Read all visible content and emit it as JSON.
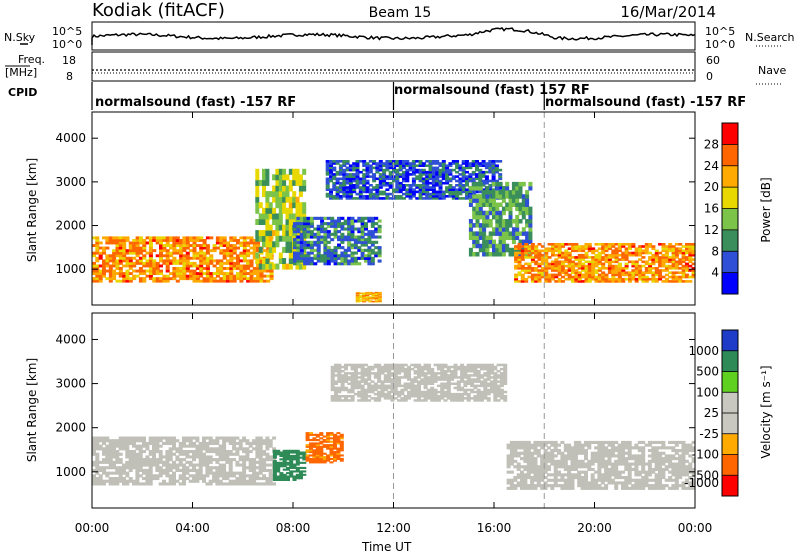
{
  "header": {
    "station": "Kodiak (fitACF)",
    "beam": "Beam 15",
    "date": "16/Mar/2014"
  },
  "panels": {
    "noise": {
      "left_label": "N.Sky",
      "right_label": "N.Search",
      "left_ticks": [
        "10^5",
        "10^0"
      ],
      "right_ticks": [
        "10^5",
        "10^0"
      ]
    },
    "freq": {
      "left_label_1": "Freq.",
      "left_label_2": "[MHz]",
      "right_label": "Nave",
      "left_ticks": [
        "18",
        "8"
      ],
      "right_ticks": [
        "60",
        "0"
      ]
    },
    "cpid": {
      "label": "CPID",
      "segments": [
        {
          "text": "normalsound (fast) -157 RF",
          "start_hour": 0
        },
        {
          "text": "normalsound (fast) 157 RF",
          "start_hour": 12
        },
        {
          "text": "normalsound (fast) -157 RF",
          "start_hour": 18
        }
      ]
    },
    "power": {
      "ylabel": "Slant Range [km]",
      "colorbar_label": "Power [dB]",
      "colorbar_ticks": [
        "28",
        "24",
        "20",
        "16",
        "12",
        "8",
        "4"
      ]
    },
    "velocity": {
      "ylabel": "Slant Range [km]",
      "colorbar_label": "Velocity [m s⁻¹]",
      "colorbar_ticks": [
        "1000",
        "500",
        "100",
        "25",
        "-25",
        "-100",
        "-500",
        "-1000"
      ]
    }
  },
  "xaxis": {
    "label": "Time UT",
    "ticks": [
      "00:00",
      "04:00",
      "08:00",
      "12:00",
      "16:00",
      "20:00",
      "00:00"
    ]
  },
  "colors": {
    "power_scale": [
      "#0000ff",
      "#2f4fd6",
      "#3a8e5c",
      "#7cc34a",
      "#e8d800",
      "#ffaa00",
      "#ff6600",
      "#ff0000"
    ],
    "velocity_scale": [
      "#ff0000",
      "#ff6600",
      "#ffaa00",
      "#c8c8c0",
      "#c8c8c0",
      "#60d020",
      "#2e8b57",
      "#1e3cc8"
    ],
    "ground_scatter": "#c0c0b8"
  },
  "chart_data": [
    {
      "type": "heatmap",
      "title": "Power [dB]",
      "xlabel": "Time UT",
      "ylabel": "Slant Range [km]",
      "xlim": [
        0,
        24
      ],
      "ylim": [
        180,
        4600
      ],
      "yticks": [
        1000,
        2000,
        3000,
        4000
      ],
      "zlim": [
        0,
        30
      ],
      "echo_regions": [
        {
          "t": [
            0,
            7.2
          ],
          "range": [
            700,
            1750
          ],
          "value": 22
        },
        {
          "t": [
            6.5,
            8.5
          ],
          "range": [
            1000,
            3300
          ],
          "value": 14
        },
        {
          "t": [
            8,
            11.5
          ],
          "range": [
            1100,
            2200
          ],
          "value": 8
        },
        {
          "t": [
            9.3,
            16.3
          ],
          "range": [
            2600,
            3500
          ],
          "value": 6
        },
        {
          "t": [
            15,
            17.5
          ],
          "range": [
            1300,
            3000
          ],
          "value": 10
        },
        {
          "t": [
            16.8,
            24
          ],
          "range": [
            700,
            1600
          ],
          "value": 22
        },
        {
          "t": [
            10.5,
            11.5
          ],
          "range": [
            250,
            480
          ],
          "value": 20
        }
      ]
    },
    {
      "type": "heatmap",
      "title": "Velocity [m s⁻¹]",
      "xlabel": "Time UT",
      "ylabel": "Slant Range [km]",
      "xlim": [
        0,
        24
      ],
      "ylim": [
        180,
        4600
      ],
      "yticks": [
        1000,
        2000,
        3000,
        4000
      ],
      "zlim": [
        -1000,
        1000
      ],
      "echo_regions": [
        {
          "t": [
            0,
            7.3
          ],
          "range": [
            700,
            1800
          ],
          "value": 0
        },
        {
          "t": [
            7.2,
            8.5
          ],
          "range": [
            800,
            1500
          ],
          "value": 200
        },
        {
          "t": [
            8.5,
            10
          ],
          "range": [
            1200,
            1900
          ],
          "value": -150
        },
        {
          "t": [
            9.5,
            16.5
          ],
          "range": [
            2600,
            3450
          ],
          "value": 0
        },
        {
          "t": [
            16.5,
            24
          ],
          "range": [
            600,
            1700
          ],
          "value": 0
        }
      ]
    }
  ]
}
